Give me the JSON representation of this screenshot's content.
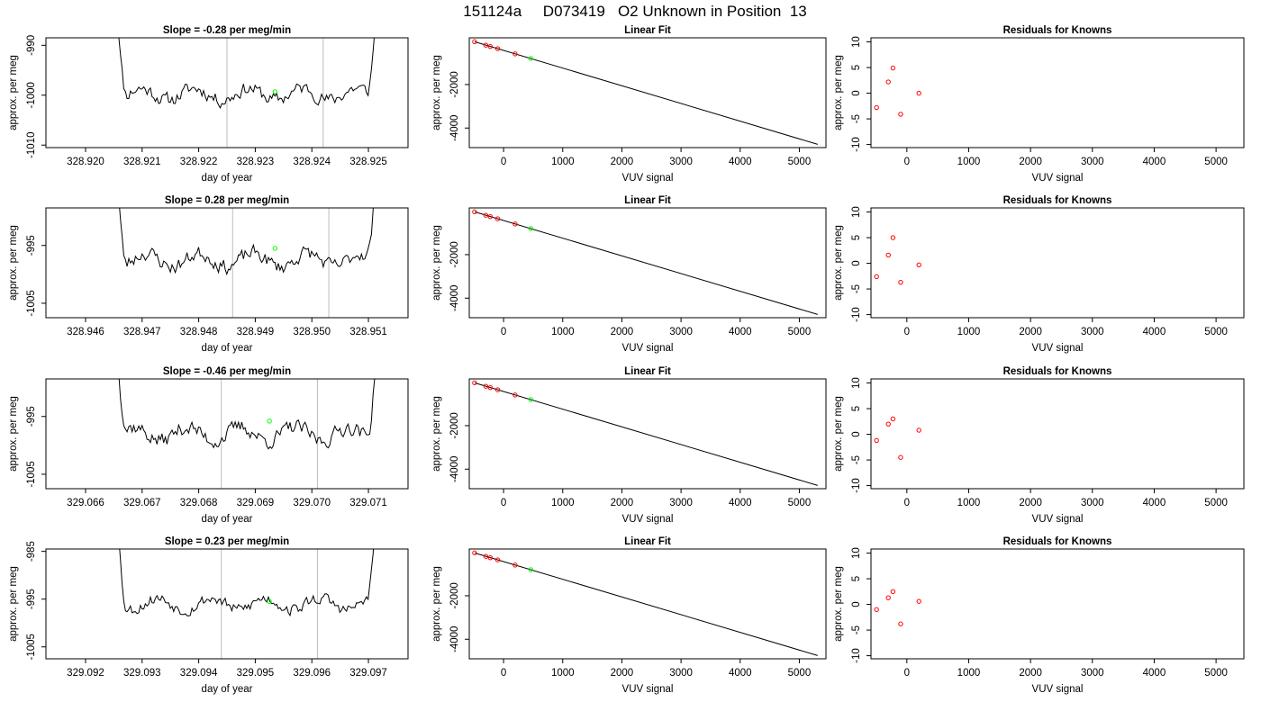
{
  "title": "151124a     D073419   O2 Unknown in Position  13",
  "colors": {
    "ink": "#000000",
    "fit_point": "#ff0000",
    "unknown_point": "#00ff00",
    "window_line": "#bebebe"
  },
  "chart_data": [
    {
      "type": "line",
      "panel": "time-series",
      "row": 1,
      "title": "Slope =  -0.28  per meg/min",
      "xlabel": "day of year",
      "ylabel": "approx. per meg",
      "xlim": [
        328.9193,
        328.9257
      ],
      "ylim": [
        -1010.5,
        -988.5
      ],
      "xticks": [
        "328.920",
        "328.921",
        "328.922",
        "328.923",
        "328.924",
        "328.925"
      ],
      "yticks": [
        "-1010",
        "-1000",
        "-990"
      ],
      "x_start": 328.9205,
      "x_end": 328.9252,
      "baseline": -999.8,
      "noise_amplitude": 2.2,
      "n_samples": 160,
      "seed": 11,
      "window_lines": [
        328.9225,
        328.9242
      ],
      "unknown_point": [
        328.92335,
        -999.3
      ]
    },
    {
      "type": "scatter",
      "panel": "linear-fit",
      "row": 1,
      "title": "Linear Fit",
      "xlabel": "VUV signal",
      "ylabel": "approx. per meg",
      "xlim": [
        -580,
        5450
      ],
      "ylim": [
        -4900,
        150
      ],
      "xticks": [
        "0",
        "1000",
        "2000",
        "3000",
        "4000",
        "5000"
      ],
      "yticks": [
        "-2000",
        "-4000"
      ],
      "fit_line": [
        [
          -490,
          -30
        ],
        [
          5310,
          -4750
        ]
      ],
      "points": [
        [
          -490,
          -30
        ],
        [
          -300,
          -190
        ],
        [
          -225,
          -250
        ],
        [
          -100,
          -350
        ],
        [
          195,
          -590
        ]
      ],
      "unknown_point": [
        460,
        -800
      ]
    },
    {
      "type": "scatter",
      "panel": "residuals",
      "row": 1,
      "title": "Residuals for Knowns",
      "xlabel": "VUV signal",
      "ylabel": "approx. per meg",
      "xlim": [
        -580,
        5450
      ],
      "ylim": [
        -10.6,
        10.8
      ],
      "xticks": [
        "0",
        "1000",
        "2000",
        "3000",
        "4000",
        "5000"
      ],
      "yticks": [
        "-10",
        "-5",
        "0",
        "5",
        "10"
      ],
      "points": [
        [
          -490,
          -2.8
        ],
        [
          -300,
          2.2
        ],
        [
          -225,
          4.9
        ],
        [
          -100,
          -4.1
        ],
        [
          195,
          0.0
        ]
      ]
    },
    {
      "type": "line",
      "panel": "time-series",
      "row": 2,
      "title": "Slope =  0.28  per meg/min",
      "xlabel": "day of year",
      "ylabel": "approx. per meg",
      "xlim": [
        328.9453,
        328.9517
      ],
      "ylim": [
        -1007.5,
        -988.5
      ],
      "xticks": [
        "328.946",
        "328.947",
        "328.948",
        "328.949",
        "328.950",
        "328.951"
      ],
      "yticks": [
        "-1005",
        "-995"
      ],
      "x_start": 328.9465,
      "x_end": 328.9512,
      "baseline": -997.5,
      "noise_amplitude": 2.0,
      "n_samples": 160,
      "seed": 23,
      "window_lines": [
        328.9486,
        328.9503
      ],
      "unknown_point": [
        328.94935,
        -995.5
      ]
    },
    {
      "type": "scatter",
      "panel": "linear-fit",
      "row": 2,
      "title": "Linear Fit",
      "xlabel": "VUV signal",
      "ylabel": "approx. per meg",
      "xlim": [
        -580,
        5450
      ],
      "ylim": [
        -4900,
        150
      ],
      "xticks": [
        "0",
        "1000",
        "2000",
        "3000",
        "4000",
        "5000"
      ],
      "yticks": [
        "-2000",
        "-4000"
      ],
      "fit_line": [
        [
          -490,
          -30
        ],
        [
          5310,
          -4750
        ]
      ],
      "points": [
        [
          -490,
          -30
        ],
        [
          -300,
          -190
        ],
        [
          -225,
          -250
        ],
        [
          -100,
          -350
        ],
        [
          195,
          -590
        ]
      ],
      "unknown_point": [
        460,
        -800
      ]
    },
    {
      "type": "scatter",
      "panel": "residuals",
      "row": 2,
      "title": "Residuals for Knowns",
      "xlabel": "VUV signal",
      "ylabel": "approx. per meg",
      "xlim": [
        -580,
        5450
      ],
      "ylim": [
        -10.6,
        10.8
      ],
      "xticks": [
        "0",
        "1000",
        "2000",
        "3000",
        "4000",
        "5000"
      ],
      "yticks": [
        "-10",
        "-5",
        "0",
        "5",
        "10"
      ],
      "points": [
        [
          -490,
          -2.6
        ],
        [
          -300,
          1.6
        ],
        [
          -225,
          5.0
        ],
        [
          -100,
          -3.7
        ],
        [
          195,
          -0.3
        ]
      ]
    },
    {
      "type": "line",
      "panel": "time-series",
      "row": 3,
      "title": "Slope =  -0.46  per meg/min",
      "xlabel": "day of year",
      "ylabel": "approx. per meg",
      "xlim": [
        329.0653,
        329.0717
      ],
      "ylim": [
        -1007.5,
        -988.5
      ],
      "xticks": [
        "329.066",
        "329.067",
        "329.068",
        "329.069",
        "329.070",
        "329.071"
      ],
      "yticks": [
        "-1005",
        "-995"
      ],
      "x_start": 329.0665,
      "x_end": 329.0712,
      "baseline": -998.0,
      "noise_amplitude": 2.1,
      "n_samples": 160,
      "seed": 37,
      "window_lines": [
        329.0684,
        329.0701
      ],
      "unknown_point": [
        329.06925,
        -995.8
      ]
    },
    {
      "type": "scatter",
      "panel": "linear-fit",
      "row": 3,
      "title": "Linear Fit",
      "xlabel": "VUV signal",
      "ylabel": "approx. per meg",
      "xlim": [
        -580,
        5450
      ],
      "ylim": [
        -4900,
        150
      ],
      "xticks": [
        "0",
        "1000",
        "2000",
        "3000",
        "4000",
        "5000"
      ],
      "yticks": [
        "-2000",
        "-4000"
      ],
      "fit_line": [
        [
          -490,
          -30
        ],
        [
          5310,
          -4750
        ]
      ],
      "points": [
        [
          -490,
          -30
        ],
        [
          -300,
          -190
        ],
        [
          -225,
          -250
        ],
        [
          -100,
          -350
        ],
        [
          195,
          -590
        ]
      ],
      "unknown_point": [
        460,
        -800
      ]
    },
    {
      "type": "scatter",
      "panel": "residuals",
      "row": 3,
      "title": "Residuals for Knowns",
      "xlabel": "VUV signal",
      "ylabel": "approx. per meg",
      "xlim": [
        -580,
        5450
      ],
      "ylim": [
        -10.6,
        10.8
      ],
      "xticks": [
        "0",
        "1000",
        "2000",
        "3000",
        "4000",
        "5000"
      ],
      "yticks": [
        "-10",
        "-5",
        "0",
        "5",
        "10"
      ],
      "points": [
        [
          -490,
          -1.2
        ],
        [
          -300,
          2.0
        ],
        [
          -225,
          3.0
        ],
        [
          -100,
          -4.5
        ],
        [
          195,
          0.8
        ]
      ]
    },
    {
      "type": "line",
      "panel": "time-series",
      "row": 4,
      "title": "Slope =  0.23  per meg/min",
      "xlabel": "day of year",
      "ylabel": "approx. per meg",
      "xlim": [
        329.0913,
        329.0977
      ],
      "ylim": [
        -1007.5,
        -984.5
      ],
      "xticks": [
        "329.092",
        "329.093",
        "329.094",
        "329.095",
        "329.096",
        "329.097"
      ],
      "yticks": [
        "-1005",
        "-995",
        "-985"
      ],
      "x_start": 329.0925,
      "x_end": 329.0972,
      "baseline": -996.0,
      "noise_amplitude": 2.0,
      "n_samples": 160,
      "seed": 53,
      "window_lines": [
        329.0944,
        329.0961
      ],
      "unknown_point": [
        329.09525,
        -995.5
      ]
    },
    {
      "type": "scatter",
      "panel": "linear-fit",
      "row": 4,
      "title": "Linear Fit",
      "xlabel": "VUV signal",
      "ylabel": "approx. per meg",
      "xlim": [
        -580,
        5450
      ],
      "ylim": [
        -4900,
        150
      ],
      "xticks": [
        "0",
        "1000",
        "2000",
        "3000",
        "4000",
        "5000"
      ],
      "yticks": [
        "-2000",
        "-4000"
      ],
      "fit_line": [
        [
          -490,
          -30
        ],
        [
          5310,
          -4750
        ]
      ],
      "points": [
        [
          -490,
          -30
        ],
        [
          -300,
          -190
        ],
        [
          -225,
          -250
        ],
        [
          -100,
          -350
        ],
        [
          195,
          -590
        ]
      ],
      "unknown_point": [
        460,
        -800
      ]
    },
    {
      "type": "scatter",
      "panel": "residuals",
      "row": 4,
      "title": "Residuals for Knowns",
      "xlabel": "VUV signal",
      "ylabel": "approx. per meg",
      "xlim": [
        -580,
        5450
      ],
      "ylim": [
        -10.6,
        10.8
      ],
      "xticks": [
        "0",
        "1000",
        "2000",
        "3000",
        "4000",
        "5000"
      ],
      "yticks": [
        "-10",
        "-5",
        "0",
        "5",
        "10"
      ],
      "points": [
        [
          -490,
          -1.0
        ],
        [
          -300,
          1.3
        ],
        [
          -225,
          2.5
        ],
        [
          -100,
          -3.8
        ],
        [
          195,
          0.6
        ]
      ]
    }
  ]
}
